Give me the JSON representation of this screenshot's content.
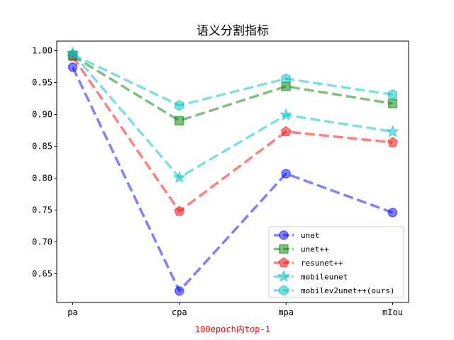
{
  "chart_data": {
    "type": "line",
    "title": "语义分割指标",
    "xlabel": "100epoch内top-1",
    "xlabel_color": "#ff0000",
    "ylabel": "",
    "categories": [
      "pa",
      "cpa",
      "mpa",
      "mIou"
    ],
    "ylim": [
      0.605,
      1.015
    ],
    "yticks": [
      0.65,
      0.7,
      0.75,
      0.8,
      0.85,
      0.9,
      0.95,
      1.0
    ],
    "ytick_labels": [
      "0.65",
      "0.70",
      "0.75",
      "0.80",
      "0.85",
      "0.90",
      "0.95",
      "1.00"
    ],
    "grid": false,
    "legend_position": "lower-right",
    "series": [
      {
        "name": "unet",
        "color": "#0000ff",
        "marker": "circle",
        "values": [
          0.974,
          0.623,
          0.807,
          0.746
        ]
      },
      {
        "name": "unet++",
        "color": "#008000",
        "marker": "square",
        "values": [
          0.992,
          0.89,
          0.944,
          0.917
        ]
      },
      {
        "name": "resunet++",
        "color": "#ff0000",
        "marker": "pentagon",
        "values": [
          0.991,
          0.748,
          0.873,
          0.856
        ]
      },
      {
        "name": "mobileunet",
        "color": "#00bfbf",
        "marker": "star",
        "values": [
          0.996,
          0.801,
          0.899,
          0.873
        ]
      },
      {
        "name": "mobilev2unet++(ours)",
        "color": "#00bfbf",
        "marker": "hexagon",
        "values": [
          0.994,
          0.914,
          0.956,
          0.931
        ]
      }
    ]
  }
}
